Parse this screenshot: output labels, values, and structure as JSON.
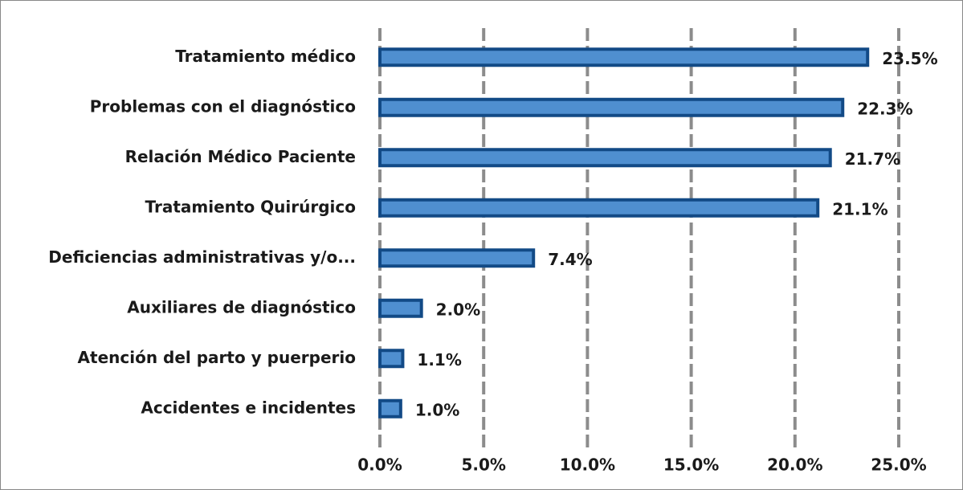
{
  "chart_data": {
    "type": "bar",
    "orientation": "horizontal",
    "categories": [
      "Tratamiento médico",
      "Problemas con el diagnóstico",
      "Relación Médico Paciente",
      "Tratamiento Quirúrgico",
      "Deficiencias administrativas y/o...",
      "Auxiliares de diagnóstico",
      "Atención del parto y puerperio",
      "Accidentes e incidentes"
    ],
    "values": [
      23.5,
      22.3,
      21.7,
      21.1,
      7.4,
      2.0,
      1.1,
      1.0
    ],
    "value_labels": [
      "23.5%",
      "22.3%",
      "21.7%",
      "21.1%",
      "7.4%",
      "2.0%",
      "1.1%",
      "1.0%"
    ],
    "color": "#4f8fd0",
    "edge_color": "#124a86",
    "xlim": [
      0,
      25
    ],
    "xticks": [
      {
        "value": 0,
        "label": "0.0%"
      },
      {
        "value": 5,
        "label": "5.0%"
      },
      {
        "value": 10,
        "label": "10.0%"
      },
      {
        "value": 15,
        "label": "15.0%"
      },
      {
        "value": 20,
        "label": "20.0%"
      },
      {
        "value": 25,
        "label": "25.0%"
      }
    ],
    "grid": true
  }
}
